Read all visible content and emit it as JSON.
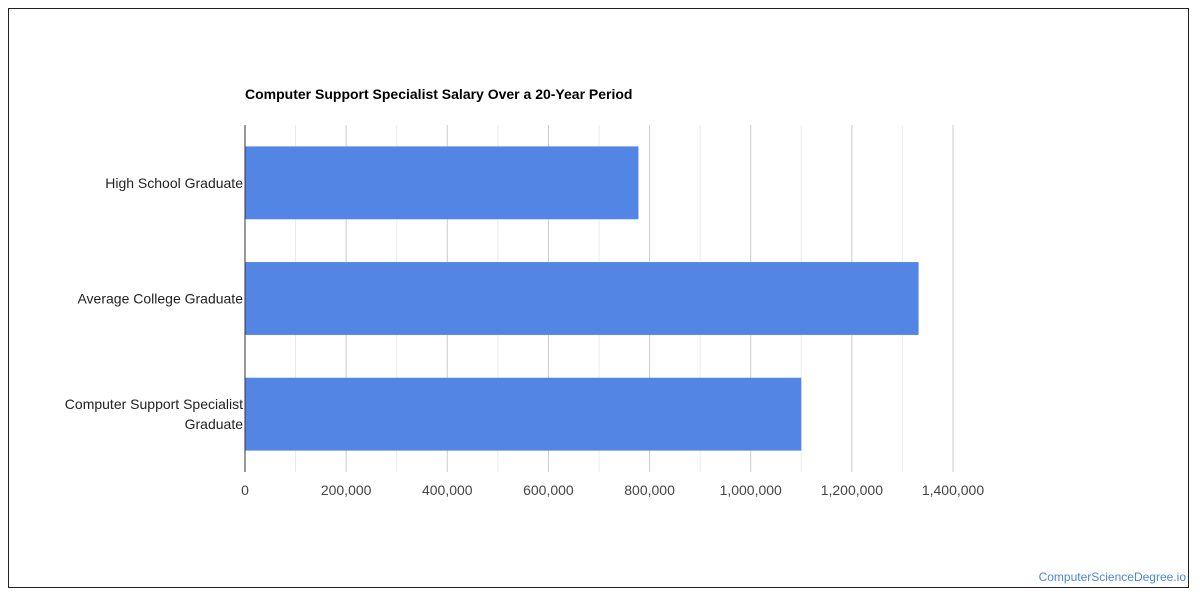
{
  "chart_data": {
    "type": "bar",
    "orientation": "horizontal",
    "title": "Computer Support Specialist Salary Over a 20-Year Period",
    "categories": [
      [
        "High School Graduate"
      ],
      [
        "Average College Graduate"
      ],
      [
        "Computer Support Specialist",
        "Graduate"
      ]
    ],
    "values": [
      778000,
      1332000,
      1100000
    ],
    "xlim": [
      0,
      1400000
    ],
    "x_ticks": [
      0,
      200000,
      400000,
      600000,
      800000,
      1000000,
      1200000,
      1400000
    ],
    "x_tick_labels": [
      "0",
      "200,000",
      "400,000",
      "600,000",
      "800,000",
      "1,000,000",
      "1,200,000",
      "1,400,000"
    ],
    "grid": true,
    "legend": "none",
    "bar_color": "#5386e4"
  },
  "watermark": "ComputerScienceDegree.io"
}
